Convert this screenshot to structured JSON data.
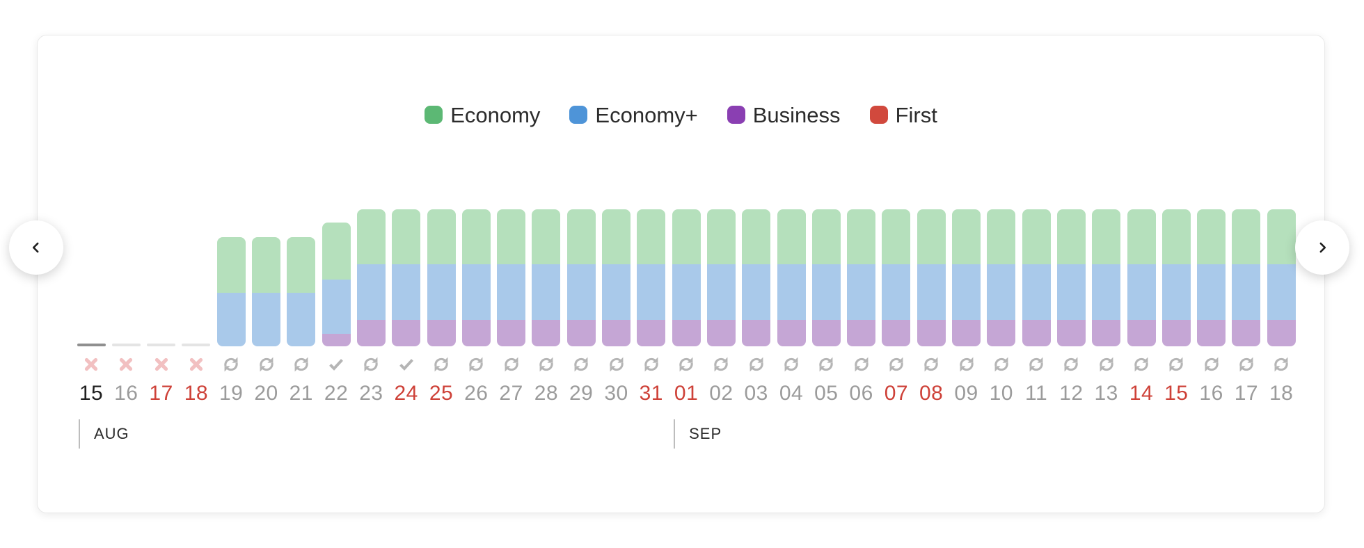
{
  "legend": {
    "items": [
      {
        "label": "Economy",
        "color": "#5cb874"
      },
      {
        "label": "Economy+",
        "color": "#4e94d8"
      },
      {
        "label": "Business",
        "color": "#8a3fb2"
      },
      {
        "label": "First",
        "color": "#d1493d"
      }
    ]
  },
  "nav": {
    "prev_icon": "chevron-left",
    "next_icon": "chevron-right"
  },
  "calendar": {
    "days": [
      {
        "day": "15",
        "tone": "selected",
        "status": "sold-out"
      },
      {
        "day": "16",
        "tone": "default",
        "status": "sold-out"
      },
      {
        "day": "17",
        "tone": "weekend",
        "status": "sold-out"
      },
      {
        "day": "18",
        "tone": "weekend",
        "status": "sold-out"
      },
      {
        "day": "19",
        "tone": "default",
        "status": "cached"
      },
      {
        "day": "20",
        "tone": "default",
        "status": "cached"
      },
      {
        "day": "21",
        "tone": "default",
        "status": "cached"
      },
      {
        "day": "22",
        "tone": "default",
        "status": "confirmed"
      },
      {
        "day": "23",
        "tone": "default",
        "status": "cached"
      },
      {
        "day": "24",
        "tone": "weekend",
        "status": "confirmed"
      },
      {
        "day": "25",
        "tone": "weekend",
        "status": "cached"
      },
      {
        "day": "26",
        "tone": "default",
        "status": "cached"
      },
      {
        "day": "27",
        "tone": "default",
        "status": "cached"
      },
      {
        "day": "28",
        "tone": "default",
        "status": "cached"
      },
      {
        "day": "29",
        "tone": "default",
        "status": "cached"
      },
      {
        "day": "30",
        "tone": "default",
        "status": "cached"
      },
      {
        "day": "31",
        "tone": "weekend",
        "status": "cached"
      },
      {
        "day": "01",
        "tone": "weekend",
        "status": "cached"
      },
      {
        "day": "02",
        "tone": "default",
        "status": "cached"
      },
      {
        "day": "03",
        "tone": "default",
        "status": "cached"
      },
      {
        "day": "04",
        "tone": "default",
        "status": "cached"
      },
      {
        "day": "05",
        "tone": "default",
        "status": "cached"
      },
      {
        "day": "06",
        "tone": "default",
        "status": "cached"
      },
      {
        "day": "07",
        "tone": "weekend",
        "status": "cached"
      },
      {
        "day": "08",
        "tone": "weekend",
        "status": "cached"
      },
      {
        "day": "09",
        "tone": "default",
        "status": "cached"
      },
      {
        "day": "10",
        "tone": "default",
        "status": "cached"
      },
      {
        "day": "11",
        "tone": "default",
        "status": "cached"
      },
      {
        "day": "12",
        "tone": "default",
        "status": "cached"
      },
      {
        "day": "13",
        "tone": "default",
        "status": "cached"
      },
      {
        "day": "14",
        "tone": "weekend",
        "status": "cached"
      },
      {
        "day": "15",
        "tone": "weekend",
        "status": "cached"
      },
      {
        "day": "16",
        "tone": "default",
        "status": "cached"
      },
      {
        "day": "17",
        "tone": "default",
        "status": "cached"
      },
      {
        "day": "18",
        "tone": "default",
        "status": "cached"
      }
    ],
    "months": [
      {
        "label": "AUG",
        "start_column": 0
      },
      {
        "label": "SEP",
        "start_column": 17
      }
    ],
    "status_icons": {
      "sold-out": "cross-icon",
      "cached": "sync-icon",
      "confirmed": "check-icon"
    }
  },
  "chart_data": {
    "type": "bar",
    "stacked": true,
    "title": "",
    "xlabel": "",
    "ylabel": "",
    "legend_position": "top",
    "grid": false,
    "ylim": [
      0,
      197
    ],
    "value_unit": "availability height (px, measured from screenshot)",
    "categories": [
      "Aug 15",
      "Aug 16",
      "Aug 17",
      "Aug 18",
      "Aug 19",
      "Aug 20",
      "Aug 21",
      "Aug 22",
      "Aug 23",
      "Aug 24",
      "Aug 25",
      "Aug 26",
      "Aug 27",
      "Aug 28",
      "Aug 29",
      "Aug 30",
      "Aug 31",
      "Sep 01",
      "Sep 02",
      "Sep 03",
      "Sep 04",
      "Sep 05",
      "Sep 06",
      "Sep 07",
      "Sep 08",
      "Sep 09",
      "Sep 10",
      "Sep 11",
      "Sep 12",
      "Sep 13",
      "Sep 14",
      "Sep 15",
      "Sep 16",
      "Sep 17",
      "Sep 18"
    ],
    "series": [
      {
        "name": "Economy",
        "color": "#b5e0bc",
        "values": [
          0,
          0,
          0,
          0,
          80,
          80,
          80,
          82,
          79,
          79,
          79,
          79,
          79,
          79,
          79,
          79,
          79,
          79,
          79,
          79,
          79,
          79,
          79,
          79,
          79,
          79,
          79,
          79,
          79,
          79,
          79,
          79,
          79,
          79,
          79
        ]
      },
      {
        "name": "Economy+",
        "color": "#a9c9ea",
        "values": [
          0,
          0,
          0,
          0,
          77,
          77,
          77,
          78,
          80,
          80,
          80,
          80,
          80,
          80,
          80,
          80,
          80,
          80,
          80,
          80,
          80,
          80,
          80,
          80,
          80,
          80,
          80,
          80,
          80,
          80,
          80,
          80,
          80,
          80,
          80
        ]
      },
      {
        "name": "Business",
        "color": "#c5a6d5",
        "values": [
          0,
          0,
          0,
          0,
          0,
          0,
          0,
          18,
          38,
          38,
          38,
          38,
          38,
          38,
          38,
          38,
          38,
          38,
          38,
          38,
          38,
          38,
          38,
          38,
          38,
          38,
          38,
          38,
          38,
          38,
          38,
          38,
          38,
          38,
          38
        ]
      },
      {
        "name": "First",
        "color": "#d1493d",
        "values": [
          0,
          0,
          0,
          0,
          0,
          0,
          0,
          0,
          0,
          0,
          0,
          0,
          0,
          0,
          0,
          0,
          0,
          0,
          0,
          0,
          0,
          0,
          0,
          0,
          0,
          0,
          0,
          0,
          0,
          0,
          0,
          0,
          0,
          0,
          0
        ]
      }
    ]
  },
  "colors": {
    "day_selected": "#1f1f1f",
    "day_default": "#9b9b9b",
    "day_weekend": "#ce4138",
    "icon_muted": "#b5b5b5",
    "icon_unavailable": "#f2c0c1",
    "baseline_selected": "#8f8f8f",
    "baseline_empty": "#e4e4e4",
    "month_text": "#2b2b2b",
    "month_divider": "#bdbdbd"
  }
}
